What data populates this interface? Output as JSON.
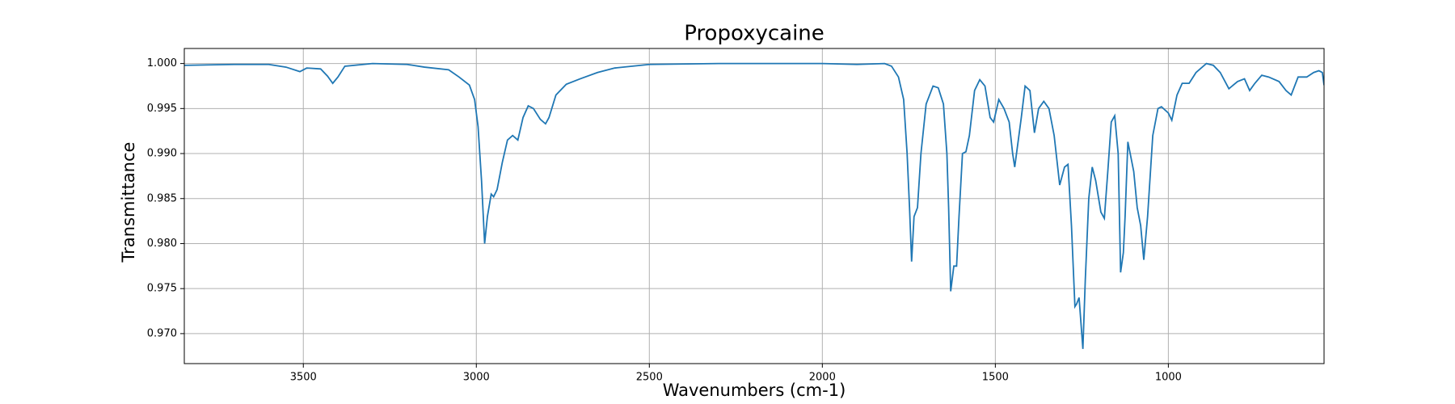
{
  "chart_data": {
    "type": "line",
    "title": "Propoxycaine",
    "x_label": "Wavenumbers (cm-1)",
    "y_label": "Transmittance",
    "xlim": [
      3844,
      550
    ],
    "ylim": [
      0.96667,
      1.00167
    ],
    "xticks": [
      3500,
      3000,
      2500,
      2000,
      1500,
      1000
    ],
    "yticks": [
      {
        "value": 0.97,
        "label": "0.970"
      },
      0.975,
      {
        "value": 0.98,
        "label": "0.980"
      },
      0.985,
      {
        "value": 0.99,
        "label": "0.990"
      },
      0.995,
      {
        "value": 1,
        "label": "1.000"
      }
    ],
    "grid": true,
    "color": "#1f77b4",
    "x": [
      3844,
      3700,
      3600,
      3550,
      3510,
      3490,
      3450,
      3430,
      3415,
      3400,
      3380,
      3300,
      3200,
      3150,
      3080,
      3050,
      3020,
      3005,
      2995,
      2985,
      2976,
      2968,
      2957,
      2950,
      2940,
      2925,
      2910,
      2895,
      2880,
      2865,
      2850,
      2835,
      2815,
      2800,
      2790,
      2770,
      2740,
      2700,
      2650,
      2600,
      2500,
      2300,
      2000,
      1900,
      1820,
      1800,
      1780,
      1765,
      1755,
      1748,
      1742,
      1735,
      1725,
      1715,
      1700,
      1680,
      1665,
      1650,
      1640,
      1635,
      1629,
      1620,
      1612,
      1605,
      1595,
      1585,
      1575,
      1560,
      1545,
      1530,
      1515,
      1505,
      1490,
      1475,
      1460,
      1450,
      1444,
      1425,
      1414,
      1400,
      1387,
      1375,
      1360,
      1345,
      1330,
      1314,
      1300,
      1290,
      1280,
      1270,
      1265,
      1258,
      1247,
      1240,
      1230,
      1220,
      1210,
      1195,
      1185,
      1175,
      1165,
      1155,
      1145,
      1138,
      1130,
      1125,
      1117,
      1100,
      1090,
      1080,
      1071,
      1060,
      1045,
      1030,
      1020,
      1000,
      990,
      975,
      960,
      940,
      920,
      890,
      870,
      850,
      825,
      800,
      780,
      765,
      750,
      730,
      710,
      680,
      660,
      645,
      625,
      600,
      580,
      565,
      555,
      550
    ],
    "values": [
      0.9998,
      0.9999,
      0.9999,
      0.9996,
      0.9991,
      0.9995,
      0.9994,
      0.9986,
      0.9978,
      0.9985,
      0.9997,
      1.0,
      0.9999,
      0.9996,
      0.9993,
      0.9985,
      0.9976,
      0.996,
      0.993,
      0.987,
      0.98,
      0.983,
      0.9855,
      0.9852,
      0.986,
      0.989,
      0.9915,
      0.992,
      0.9915,
      0.994,
      0.9953,
      0.995,
      0.9938,
      0.9933,
      0.994,
      0.9965,
      0.9977,
      0.9983,
      0.999,
      0.9995,
      0.9999,
      1.0,
      1.0,
      0.9999,
      1.0,
      0.9997,
      0.9985,
      0.996,
      0.99,
      0.984,
      0.978,
      0.983,
      0.984,
      0.99,
      0.9955,
      0.9975,
      0.9973,
      0.9955,
      0.99,
      0.984,
      0.9747,
      0.9775,
      0.9775,
      0.983,
      0.99,
      0.9902,
      0.992,
      0.997,
      0.9982,
      0.9975,
      0.994,
      0.9935,
      0.996,
      0.995,
      0.9935,
      0.99,
      0.9885,
      0.994,
      0.9975,
      0.997,
      0.9923,
      0.995,
      0.9958,
      0.995,
      0.992,
      0.9865,
      0.9885,
      0.9888,
      0.982,
      0.973,
      0.9733,
      0.974,
      0.9683,
      0.976,
      0.985,
      0.9885,
      0.987,
      0.9835,
      0.9828,
      0.988,
      0.9935,
      0.9942,
      0.99,
      0.9768,
      0.979,
      0.983,
      0.9913,
      0.988,
      0.984,
      0.982,
      0.9782,
      0.983,
      0.992,
      0.995,
      0.9952,
      0.9945,
      0.9937,
      0.9965,
      0.9978,
      0.9978,
      0.999,
      1.0,
      0.9998,
      0.999,
      0.9972,
      0.998,
      0.9983,
      0.997,
      0.9978,
      0.9987,
      0.9985,
      0.998,
      0.997,
      0.9965,
      0.9985,
      0.9985,
      0.999,
      0.9992,
      0.999,
      0.9976
    ]
  }
}
